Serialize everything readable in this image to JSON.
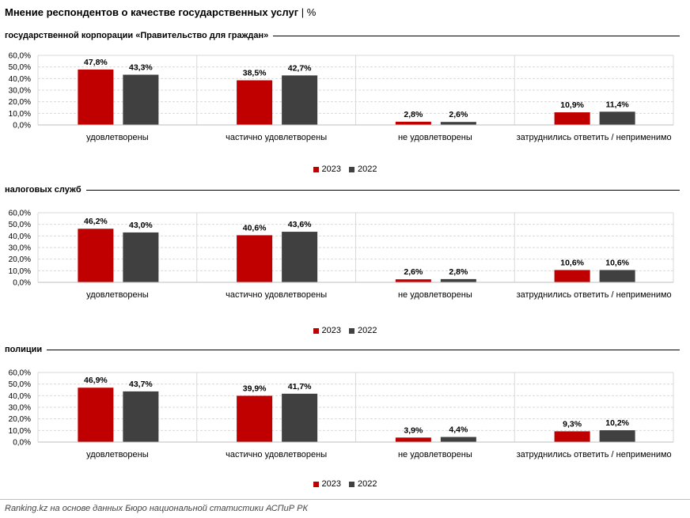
{
  "page": {
    "title": "Мнение респондентов о качестве государственных услуг",
    "separator": "|",
    "unit": "%",
    "footer": "Ranking.kz на основе данных Бюро национальной статистики АСПиР РК"
  },
  "colors": {
    "2023": "#c00000",
    "2022": "#404040"
  },
  "chart_data": [
    {
      "type": "bar",
      "title": "государственной корпорации «Правительство для граждан»",
      "categories": [
        "удовлетворены",
        "частично удовлетворены",
        "не удовлетворены",
        "затруднились ответить / неприменимо"
      ],
      "series": [
        {
          "name": "2023",
          "values": [
            47.8,
            38.5,
            2.8,
            10.9
          ],
          "labels": [
            "47,8%",
            "38,5%",
            "2,8%",
            "10,9%"
          ]
        },
        {
          "name": "2022",
          "values": [
            43.3,
            42.7,
            2.6,
            11.4
          ],
          "labels": [
            "43,3%",
            "42,7%",
            "2,6%",
            "11,4%"
          ]
        }
      ],
      "ylim": [
        0,
        60
      ],
      "yticks": [
        "0,0%",
        "10,0%",
        "20,0%",
        "30,0%",
        "40,0%",
        "50,0%",
        "60,0%"
      ],
      "legend": "bottom"
    },
    {
      "type": "bar",
      "title": "налоговых служб",
      "categories": [
        "удовлетворены",
        "частично удовлетворены",
        "не удовлетворены",
        "затруднились ответить / неприменимо"
      ],
      "series": [
        {
          "name": "2023",
          "values": [
            46.2,
            40.6,
            2.6,
            10.6
          ],
          "labels": [
            "46,2%",
            "40,6%",
            "2,6%",
            "10,6%"
          ]
        },
        {
          "name": "2022",
          "values": [
            43.0,
            43.6,
            2.8,
            10.6
          ],
          "labels": [
            "43,0%",
            "43,6%",
            "2,8%",
            "10,6%"
          ]
        }
      ],
      "ylim": [
        0,
        60
      ],
      "yticks": [
        "0,0%",
        "10,0%",
        "20,0%",
        "30,0%",
        "40,0%",
        "50,0%",
        "60,0%"
      ],
      "legend": "bottom"
    },
    {
      "type": "bar",
      "title": "полиции",
      "categories": [
        "удовлетворены",
        "частично удовлетворены",
        "не удовлетворены",
        "затруднились ответить / неприменимо"
      ],
      "series": [
        {
          "name": "2023",
          "values": [
            46.9,
            39.9,
            3.9,
            9.3
          ],
          "labels": [
            "46,9%",
            "39,9%",
            "3,9%",
            "9,3%"
          ]
        },
        {
          "name": "2022",
          "values": [
            43.7,
            41.7,
            4.4,
            10.2
          ],
          "labels": [
            "43,7%",
            "41,7%",
            "4,4%",
            "10,2%"
          ]
        }
      ],
      "ylim": [
        0,
        60
      ],
      "yticks": [
        "0,0%",
        "10,0%",
        "20,0%",
        "30,0%",
        "40,0%",
        "50,0%",
        "60,0%"
      ],
      "legend": "bottom"
    }
  ]
}
